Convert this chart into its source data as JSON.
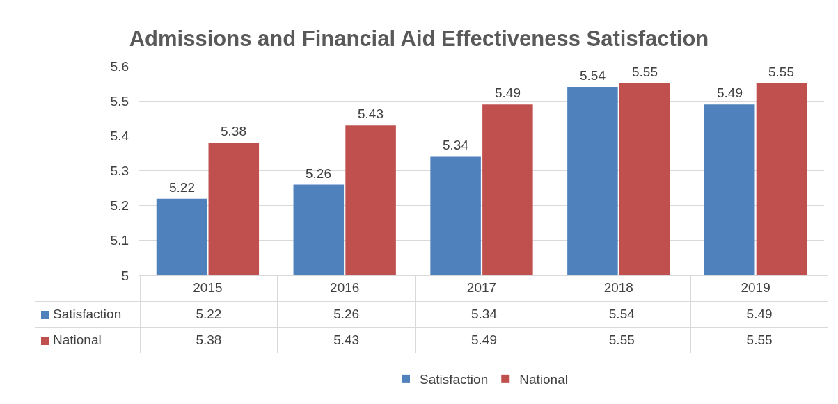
{
  "chart_data": {
    "type": "bar",
    "title": "Admissions and Financial Aid Effectiveness Satisfaction",
    "categories": [
      "2015",
      "2016",
      "2017",
      "2018",
      "2019"
    ],
    "series": [
      {
        "name": "Satisfaction",
        "color": "#4f81bd",
        "values": [
          5.22,
          5.26,
          5.34,
          5.54,
          5.49
        ]
      },
      {
        "name": "National",
        "color": "#c0504d",
        "values": [
          5.38,
          5.43,
          5.49,
          5.55,
          5.55
        ]
      }
    ],
    "annotations": [
      {
        "text": "5.22",
        "x": "2015",
        "y": 5.22
      },
      {
        "text": "5.26",
        "x": "2016",
        "y": 5.26
      },
      {
        "text": "5.34",
        "x": "2017",
        "y": 5.34
      },
      {
        "text": "5.54",
        "x": "2018",
        "y": 5.54
      },
      {
        "text": "5.49",
        "x": "2019",
        "y": 5.49
      },
      {
        "text": "5.38",
        "x": "2015",
        "y": 5.38
      },
      {
        "text": "5.43",
        "x": "2016",
        "y": 5.43
      },
      {
        "text": "5.49",
        "x": "2017",
        "y": 5.49
      },
      {
        "text": "5.55",
        "x": "2018",
        "y": 5.55
      },
      {
        "text": "5.55",
        "x": "2019",
        "y": 5.55
      }
    ],
    "ylim": [
      5,
      5.6
    ],
    "yticks": [
      5,
      5.1,
      5.2,
      5.3,
      5.4,
      5.5,
      5.6
    ],
    "grid": "y",
    "legend": "bottom",
    "data_labels": true
  }
}
